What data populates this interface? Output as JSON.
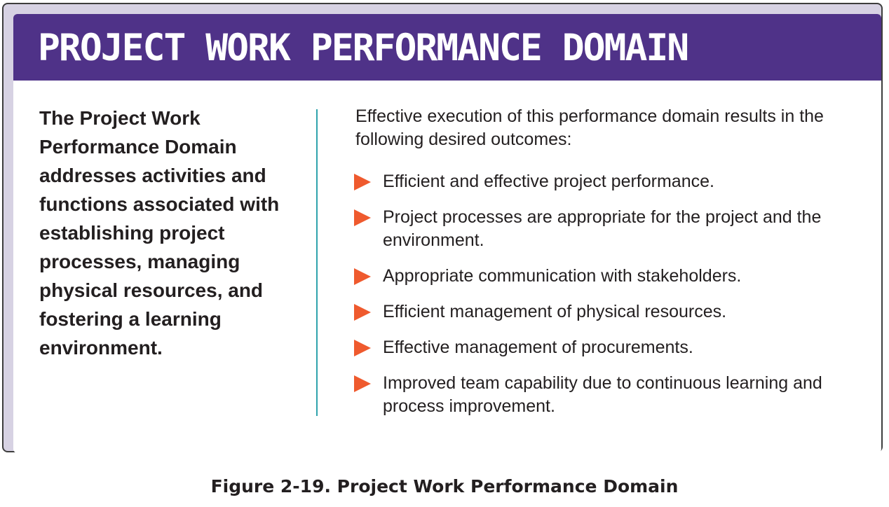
{
  "banner": {
    "title": "PROJECT WORK PERFORMANCE DOMAIN"
  },
  "left": {
    "description": "The Project Work Performance Domain addresses activities and functions associated with establishing project processes, managing physical resources, and fostering a learning environment."
  },
  "right": {
    "intro": "Effective execution of this performance domain results in the following desired outcomes:",
    "outcomes": [
      "Efficient and effective project performance.",
      "Project processes are appropriate for the project and the environment.",
      "Appropriate communication with stakeholders.",
      "Efficient management of physical resources.",
      "Effective management of procurements.",
      "Improved team capability due to continuous learning and process improvement."
    ]
  },
  "caption": "Figure 2-19. Project Work Performance Domain",
  "colors": {
    "banner": "#4f3288",
    "frame": "#d7d2e3",
    "divider": "#2fa3ad",
    "bullet": "#ef5a2e",
    "text": "#231f20"
  },
  "icons": {
    "bullet": "triangle-right-icon"
  }
}
